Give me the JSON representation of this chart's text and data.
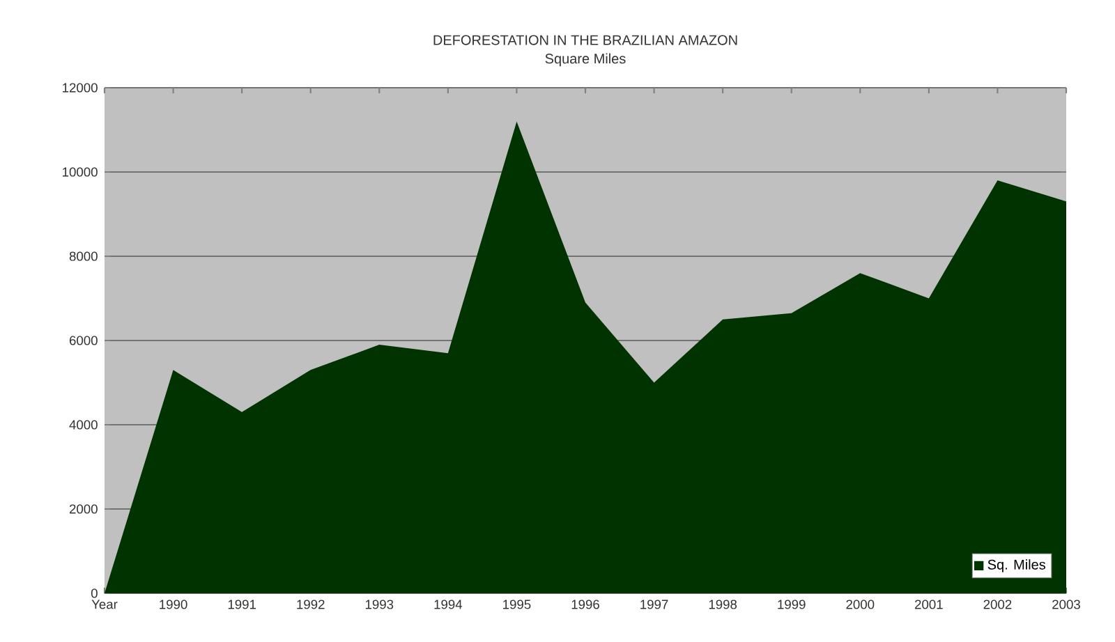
{
  "chart_data": {
    "type": "area",
    "title": "DEFORESTATION IN THE BRAZILIAN AMAZON",
    "subtitle": "Square Miles",
    "categories": [
      "Year",
      "1990",
      "1991",
      "1992",
      "1993",
      "1994",
      "1995",
      "1996",
      "1997",
      "1998",
      "1999",
      "2000",
      "2001",
      "2002",
      "2003"
    ],
    "series": [
      {
        "name": "Sq. Miles",
        "color": "#003300",
        "values": [
          0,
          5300,
          4300,
          5300,
          5900,
          5700,
          11200,
          6900,
          5000,
          6500,
          6650,
          7600,
          7000,
          9800,
          9300
        ]
      }
    ],
    "ylim": [
      0,
      12000
    ],
    "yticks": [
      0,
      2000,
      4000,
      6000,
      8000,
      10000,
      12000
    ],
    "grid": "y",
    "legend": "bottom right"
  }
}
